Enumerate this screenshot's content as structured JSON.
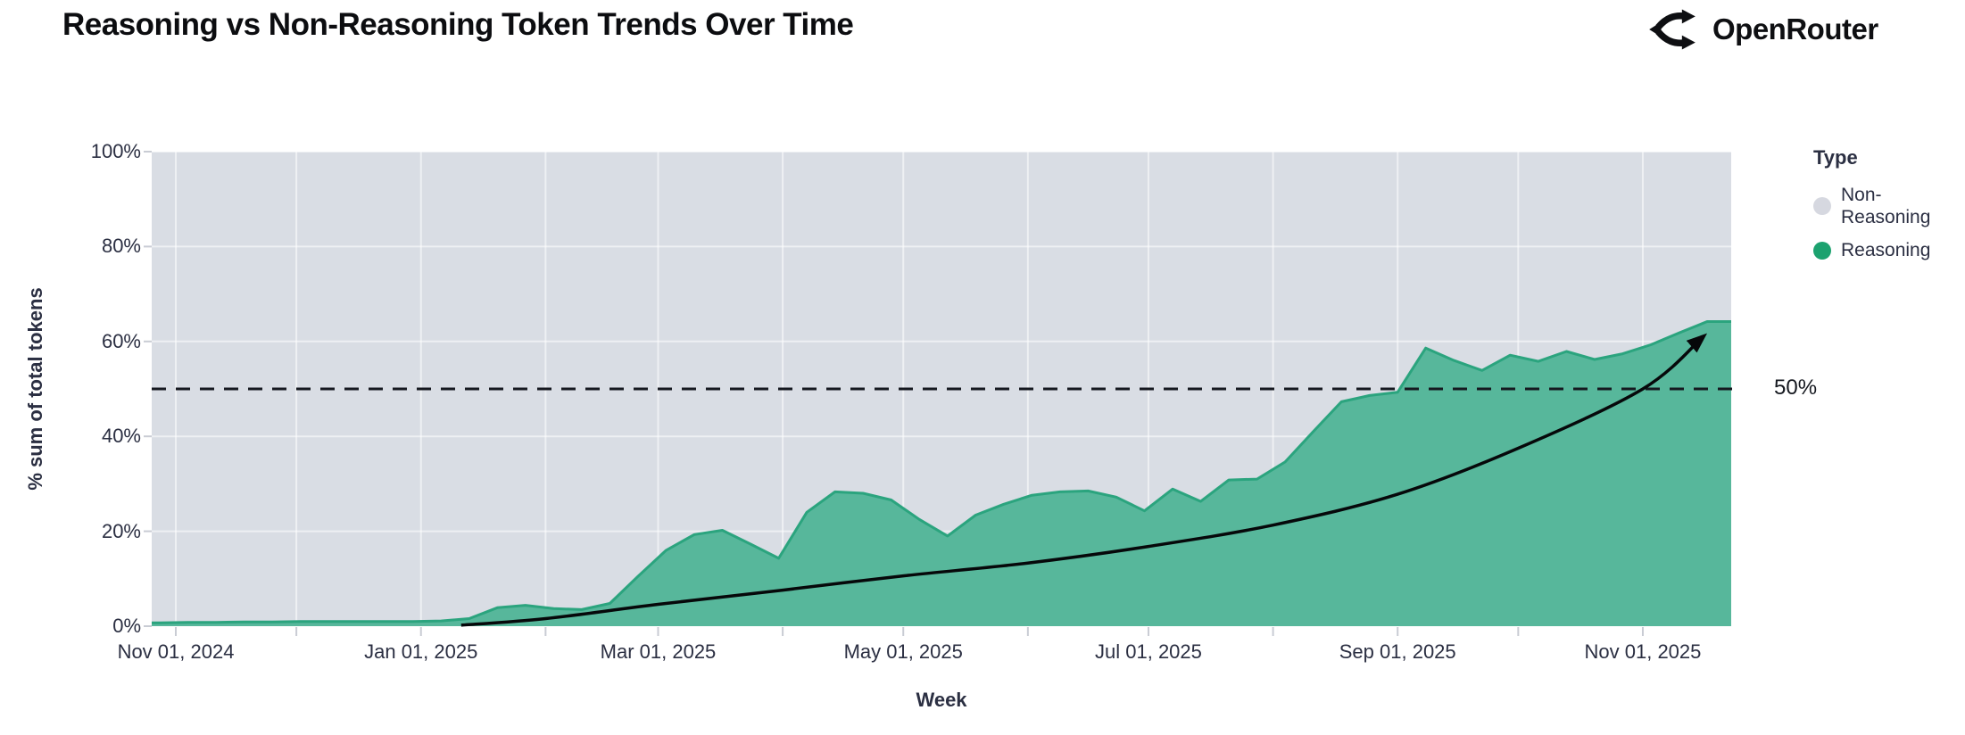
{
  "header": {
    "title": "Reasoning vs Non-Reasoning Token Trends Over Time",
    "brand": "OpenRouter"
  },
  "legend": {
    "title": "Type",
    "items": [
      {
        "label": "Non-Reasoning",
        "color": "#d6d8e0"
      },
      {
        "label": "Reasoning",
        "color": "#1ca26f"
      }
    ]
  },
  "chart_data": {
    "type": "area",
    "stacking": "percent",
    "title": "Reasoning vs Non-Reasoning Token Trends Over Time",
    "xlabel": "Week",
    "ylabel": "% sum of total tokens",
    "ylim": [
      0,
      100
    ],
    "plot_bg_color": "#d9dde4",
    "grid_color": "rgba(255,255,255,0.55)",
    "y_ticks": [
      {
        "value": 0,
        "label": "0%"
      },
      {
        "value": 20,
        "label": "20%"
      },
      {
        "value": 40,
        "label": "40%"
      },
      {
        "value": 60,
        "label": "60%"
      },
      {
        "value": 80,
        "label": "80%"
      },
      {
        "value": 100,
        "label": "100%"
      }
    ],
    "x_ticks": [
      {
        "date": "2024-11-01",
        "label": "Nov 01, 2024"
      },
      {
        "date": "2025-01-01",
        "label": "Jan 01, 2025"
      },
      {
        "date": "2025-03-01",
        "label": "Mar 01, 2025"
      },
      {
        "date": "2025-05-01",
        "label": "May 01, 2025"
      },
      {
        "date": "2025-07-01",
        "label": "Jul 01, 2025"
      },
      {
        "date": "2025-09-01",
        "label": "Sep 01, 2025"
      },
      {
        "date": "2025-11-01",
        "label": "Nov 01, 2025"
      }
    ],
    "x_minor_tick_interval": "month",
    "series": [
      {
        "name": "Non-Reasoning",
        "color": "#d9dde4",
        "value_note": "remaining share up to 100%"
      },
      {
        "name": "Reasoning",
        "color": "#57b79b",
        "line_color": "#2ba47e",
        "points": [
          [
            "2024-10-28",
            0.7
          ],
          [
            "2024-11-04",
            0.8
          ],
          [
            "2024-11-11",
            0.8
          ],
          [
            "2024-11-18",
            0.9
          ],
          [
            "2024-11-25",
            0.9
          ],
          [
            "2024-12-02",
            1.0
          ],
          [
            "2024-12-09",
            1.0
          ],
          [
            "2024-12-16",
            1.0
          ],
          [
            "2024-12-23",
            1.0
          ],
          [
            "2024-12-30",
            1.0
          ],
          [
            "2025-01-06",
            1.1
          ],
          [
            "2025-01-13",
            1.6
          ],
          [
            "2025-01-20",
            3.9
          ],
          [
            "2025-01-27",
            4.4
          ],
          [
            "2025-02-03",
            3.7
          ],
          [
            "2025-02-10",
            3.5
          ],
          [
            "2025-02-17",
            4.8
          ],
          [
            "2025-02-24",
            10.5
          ],
          [
            "2025-03-03",
            16.0
          ],
          [
            "2025-03-10",
            19.3
          ],
          [
            "2025-03-17",
            20.2
          ],
          [
            "2025-03-24",
            17.3
          ],
          [
            "2025-03-31",
            14.3
          ],
          [
            "2025-04-07",
            24.0
          ],
          [
            "2025-04-14",
            28.3
          ],
          [
            "2025-04-21",
            28.0
          ],
          [
            "2025-04-28",
            26.6
          ],
          [
            "2025-05-05",
            22.5
          ],
          [
            "2025-05-12",
            19.0
          ],
          [
            "2025-05-19",
            23.4
          ],
          [
            "2025-05-26",
            25.7
          ],
          [
            "2025-06-02",
            27.6
          ],
          [
            "2025-06-09",
            28.3
          ],
          [
            "2025-06-16",
            28.5
          ],
          [
            "2025-06-23",
            27.2
          ],
          [
            "2025-06-30",
            24.3
          ],
          [
            "2025-07-07",
            28.9
          ],
          [
            "2025-07-14",
            26.3
          ],
          [
            "2025-07-21",
            30.8
          ],
          [
            "2025-07-28",
            31.0
          ],
          [
            "2025-08-04",
            34.6
          ],
          [
            "2025-08-11",
            41.0
          ],
          [
            "2025-08-18",
            47.3
          ],
          [
            "2025-08-25",
            48.6
          ],
          [
            "2025-09-01",
            49.3
          ],
          [
            "2025-09-08",
            58.6
          ],
          [
            "2025-09-15",
            56.0
          ],
          [
            "2025-09-22",
            53.9
          ],
          [
            "2025-09-29",
            57.1
          ],
          [
            "2025-10-06",
            55.8
          ],
          [
            "2025-10-13",
            57.9
          ],
          [
            "2025-10-20",
            56.2
          ],
          [
            "2025-10-27",
            57.4
          ],
          [
            "2025-11-03",
            59.3
          ],
          [
            "2025-11-10",
            61.8
          ],
          [
            "2025-11-17",
            64.2
          ]
        ]
      }
    ],
    "reference_line": {
      "value": 50,
      "label": "50%",
      "style": "dashed",
      "color": "#15181f"
    },
    "trend_line": {
      "style": "solid",
      "color": "#06080a",
      "arrow_end": true,
      "points": [
        [
          "2025-01-11",
          0.2
        ],
        [
          "2025-02-01",
          1.6
        ],
        [
          "2025-03-01",
          4.6
        ],
        [
          "2025-04-01",
          7.6
        ],
        [
          "2025-05-01",
          10.6
        ],
        [
          "2025-06-01",
          13.3
        ],
        [
          "2025-07-01",
          16.8
        ],
        [
          "2025-08-01",
          21.3
        ],
        [
          "2025-09-01",
          27.8
        ],
        [
          "2025-10-01",
          37.5
        ],
        [
          "2025-11-01",
          50.0
        ],
        [
          "2025-11-16",
          61.0
        ]
      ]
    },
    "legend_position": "right"
  }
}
